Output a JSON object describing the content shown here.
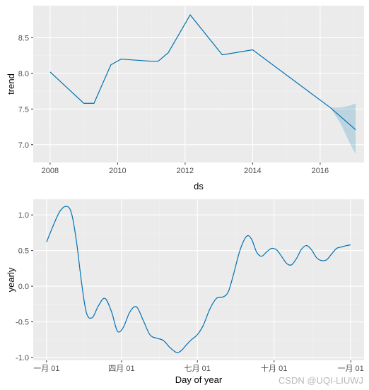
{
  "colors": {
    "line": "#0072B2",
    "band": "#0072B2",
    "panel_bg": "#EBEBEB",
    "grid_major": "#FFFFFF",
    "tick_text": "#4D4D4D"
  },
  "watermark": "CSDN @UQI-LIUWJ",
  "chart_data": [
    {
      "type": "line",
      "xlabel": "ds",
      "ylabel": "trend",
      "xlim": [
        2007.5,
        2017.3
      ],
      "ylim": [
        6.75,
        8.95
      ],
      "x_ticks": [
        2008,
        2010,
        2012,
        2014,
        2016
      ],
      "x_tick_labels": [
        "2008",
        "2010",
        "2012",
        "2014",
        "2016"
      ],
      "y_ticks": [
        7.0,
        7.5,
        8.0,
        8.5
      ],
      "y_tick_labels": [
        "7.0",
        "7.5",
        "8.0",
        "8.5"
      ],
      "grid": true,
      "series": [
        {
          "x": [
            2008.0,
            2009.0,
            2009.3,
            2009.8,
            2010.1,
            2011.0,
            2011.2,
            2011.5,
            2012.15,
            2013.1,
            2014.0,
            2016.3,
            2017.05
          ],
          "y": [
            8.02,
            7.58,
            7.58,
            8.12,
            8.2,
            8.17,
            8.17,
            8.29,
            8.82,
            8.26,
            8.33,
            7.52,
            7.21
          ]
        }
      ],
      "uncertainty_band": {
        "x": [
          2016.3,
          2016.6,
          2016.9,
          2017.05
        ],
        "lower": [
          7.52,
          7.3,
          7.0,
          6.87
        ],
        "upper": [
          7.52,
          7.52,
          7.55,
          7.58
        ]
      }
    },
    {
      "type": "line",
      "xlabel": "Day of year",
      "ylabel": "yearly",
      "xlim": [
        -16,
        381
      ],
      "ylim": [
        -1.04,
        1.22
      ],
      "x_ticks": [
        0,
        90,
        181,
        273,
        365
      ],
      "x_tick_labels": [
        "一月 01",
        "四月 01",
        "七月 01",
        "十月 01",
        "一月 01"
      ],
      "y_ticks": [
        -1.0,
        -0.5,
        0.0,
        0.5,
        1.0
      ],
      "y_tick_labels": [
        "-1.0",
        "-0.5",
        "0.0",
        "0.5",
        "1.0"
      ],
      "grid": true,
      "series": [
        {
          "x": [
            0,
            8,
            16,
            24,
            30,
            36,
            42,
            48,
            55,
            62,
            70,
            78,
            85,
            92,
            100,
            108,
            116,
            124,
            132,
            140,
            148,
            156,
            162,
            168,
            174,
            181,
            188,
            196,
            204,
            212,
            218,
            224,
            232,
            240,
            246,
            252,
            258,
            264,
            270,
            276,
            282,
            288,
            294,
            300,
            306,
            312,
            318,
            324,
            330,
            336,
            342,
            348,
            354,
            360,
            365
          ],
          "y": [
            0.62,
            0.85,
            1.05,
            1.12,
            1.02,
            0.62,
            0.05,
            -0.38,
            -0.44,
            -0.28,
            -0.17,
            -0.36,
            -0.63,
            -0.58,
            -0.36,
            -0.29,
            -0.48,
            -0.68,
            -0.73,
            -0.76,
            -0.86,
            -0.93,
            -0.9,
            -0.82,
            -0.75,
            -0.68,
            -0.55,
            -0.32,
            -0.17,
            -0.15,
            -0.08,
            0.15,
            0.5,
            0.7,
            0.66,
            0.48,
            0.42,
            0.48,
            0.53,
            0.51,
            0.42,
            0.32,
            0.3,
            0.39,
            0.52,
            0.57,
            0.51,
            0.4,
            0.36,
            0.37,
            0.45,
            0.53,
            0.55,
            0.57,
            0.58
          ]
        }
      ]
    }
  ]
}
